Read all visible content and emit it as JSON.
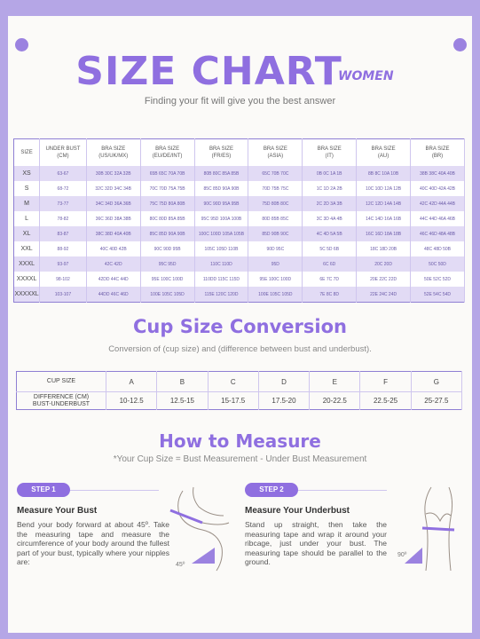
{
  "header": {
    "title": "SIZE CHART",
    "title_tag": "WOMEN",
    "subtitle": "Finding your fit will give you the best answer"
  },
  "size_table": {
    "headers": [
      "SIZE",
      "UNDER BUST\n(CM)",
      "BRA SIZE\n(US/UK/MX)",
      "BRA SIZE\n(EU/DE/INT)",
      "BRA SIZE\n(FR/ES)",
      "BRA SIZE\n(ASIA)",
      "BRA SIZE\n(IT)",
      "BRA SIZE\n(AU)",
      "BRA SIZE\n(BR)"
    ],
    "rows": [
      [
        "XS",
        "63-67",
        "30B 30C 32A 32B",
        "65B 65C 70A 70B",
        "80B 80C 85A 85B",
        "65C 70B 70C",
        "0B 0C 1A 1B",
        "8B 8C 10A 10B",
        "38B 38C 40A 40B"
      ],
      [
        "S",
        "68-72",
        "32C 32D 34C 34B",
        "70C 70D 75A 75B",
        "85C 85D 90A 90B",
        "70D 75B 75C",
        "1C 1D 2A 2B",
        "10C 10D 12A 12B",
        "40C 40D 42A 42B"
      ],
      [
        "M",
        "73-77",
        "34C 34D 36A 36B",
        "75C 75D 80A 80B",
        "90C 90D 95A 95B",
        "75D 80B 80C",
        "2C 2D 3A 3B",
        "12C 12D 14A 14B",
        "42C 42D 44A 44B"
      ],
      [
        "L",
        "78-82",
        "36C 36D 38A 38B",
        "80C 80D 85A 85B",
        "95C 95D 100A 100B",
        "80D 85B 85C",
        "3C 3D 4A 4B",
        "14C 14D 16A 16B",
        "44C 44D 46A 46B"
      ],
      [
        "XL",
        "83-87",
        "38C 38D 40A 40B",
        "85C 85D 90A 90B",
        "100C 100D 105A 105B",
        "85D 90B 90C",
        "4C 4D 5A 5B",
        "16C 16D 18A 18B",
        "46C 46D 48A 48B"
      ],
      [
        "XXL",
        "88-92",
        "40C 40D 42B",
        "90C 90D 95B",
        "105C 105D 110B",
        "90D 95C",
        "5C 5D 6B",
        "18C 18D 20B",
        "48C 48D 50B"
      ],
      [
        "XXXL",
        "93-97",
        "42C 42D",
        "95C 95D",
        "110C 110D",
        "95D",
        "6C 6D",
        "20C 20D",
        "50C 50D"
      ],
      [
        "XXXXL",
        "98-102",
        "42DD 44C 44D",
        "95E 100C 100D",
        "110DD 115C 115D",
        "95E 100C 100D",
        "6E 7C 7D",
        "20E 22C 22D",
        "50E 52C 52D"
      ],
      [
        "XXXXXL",
        "103-107",
        "44DD 46C 46D",
        "100E 105C 105D",
        "115E 120C 120D",
        "100E 105C 105D",
        "7E 8C 8D",
        "22E 24C 24D",
        "52E 54C 54D"
      ]
    ]
  },
  "cup": {
    "title": "Cup Size Conversion",
    "subtitle": "Conversion of (cup size) and (difference between bust and underbust).",
    "row1_label": "CUP SIZE",
    "row2_label": "DIFFERENCE (CM)\nBUST-UNDERBUST",
    "letters": [
      "A",
      "B",
      "C",
      "D",
      "E",
      "F",
      "G"
    ],
    "diffs": [
      "10-12.5",
      "12.5-15",
      "15-17.5",
      "17.5-20",
      "20-22.5",
      "22.5-25",
      "25-27.5"
    ]
  },
  "measure": {
    "title": "How to Measure",
    "formula": "*Your Cup Size = Bust Measurement - Under Bust Measurement",
    "step1": {
      "badge": "STEP 1",
      "heading": "Measure Your Bust",
      "text": "Bend your body forward at about 45º. Take the measuring tape and measure the circumference of your body around the fullest part of your bust, typically where your nipples are:",
      "angle": "45º"
    },
    "step2": {
      "badge": "STEP 2",
      "heading": "Measure Your Underbust",
      "text": "Stand up straight, then take the measuring tape and wrap it around your ribcage, just under your bust. The measuring tape should be parallel to the ground.",
      "angle": "90º"
    }
  },
  "colors": {
    "accent": "#8f6fe0",
    "border": "#b5a6e6",
    "row_alt": "#e2dbf5"
  }
}
